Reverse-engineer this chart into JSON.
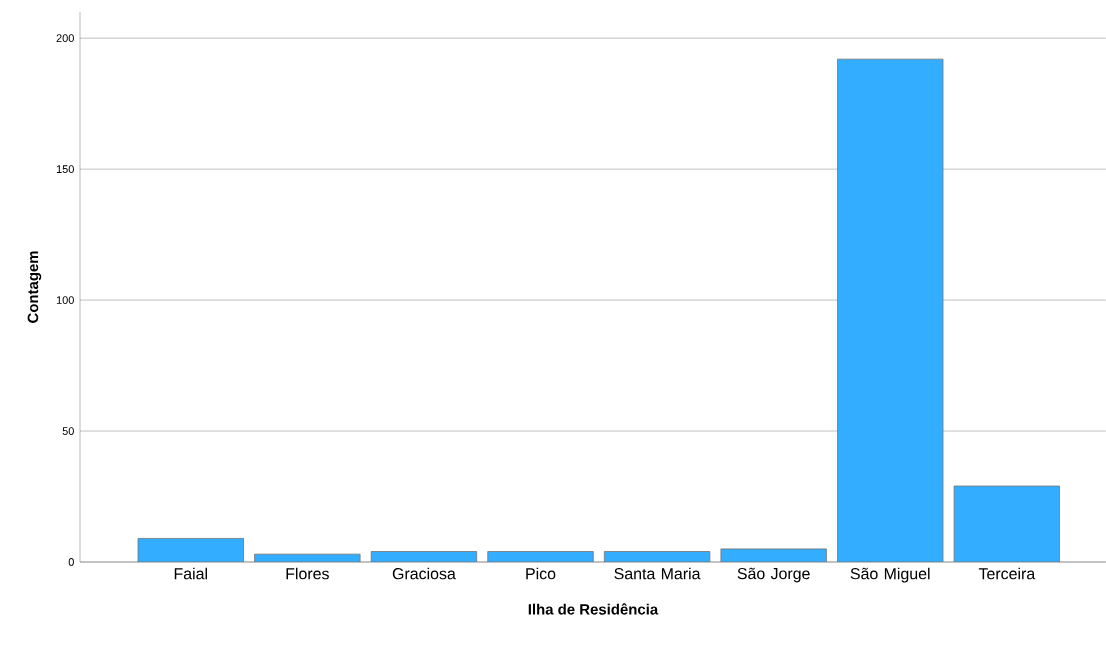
{
  "chart_data": {
    "type": "bar",
    "xlabel": "Ilha de Residência",
    "ylabel": "Contagem",
    "categories": [
      "Faial",
      "Flores",
      "Graciosa",
      "Pico",
      "Santa Maria",
      "São Jorge",
      "São Miguel",
      "Terceira"
    ],
    "values": [
      9,
      3,
      4,
      4,
      4,
      5,
      192,
      29
    ],
    "color": "#33adff",
    "ylim": [
      0,
      210
    ],
    "yticks": [
      0,
      50,
      100,
      150,
      200
    ],
    "grid": "y"
  }
}
